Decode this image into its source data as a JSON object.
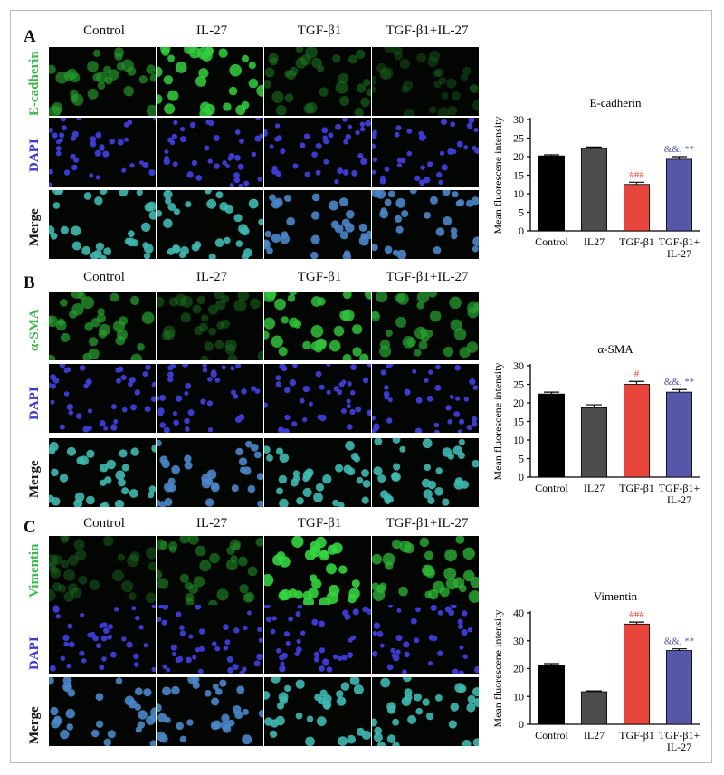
{
  "columns": [
    "Control",
    "IL-27",
    "TGF-β1",
    "TGF-β1+IL-27"
  ],
  "colors": {
    "marker_green": "#3cb84a",
    "dapi_blue": "#3b3bd0",
    "bar_control": "#000000",
    "bar_il27": "#555555",
    "bar_tgf": "#e8453c",
    "bar_combo": "#5558a8"
  },
  "panels": [
    {
      "letter": "A",
      "marker": "E-cadherin",
      "rows": [
        "E-cadherin",
        "DAPI",
        "Merge"
      ],
      "green_level": [
        0.55,
        0.85,
        0.35,
        0.2
      ]
    },
    {
      "letter": "B",
      "marker": "α-SMA",
      "rows": [
        "α-SMA",
        "DAPI",
        "Merge"
      ],
      "green_level": [
        0.6,
        0.3,
        0.8,
        0.6
      ]
    },
    {
      "letter": "C",
      "marker": "Vimentin",
      "rows": [
        "Vimentin",
        "DAPI",
        "Merge"
      ],
      "green_level": [
        0.25,
        0.45,
        0.9,
        0.7
      ]
    }
  ],
  "chart_data": [
    {
      "type": "bar",
      "title": "E-cadherin",
      "ylabel": "Mean fluorescene intensity",
      "categories": [
        "Control",
        "IL27",
        "TGF-β1",
        "TGF-β1+\nIL-27"
      ],
      "values": [
        20.2,
        22.2,
        12.5,
        19.3
      ],
      "errors": [
        0.3,
        0.4,
        0.6,
        0.7
      ],
      "annotations": [
        "",
        "",
        "###",
        "&&, **"
      ],
      "ylim": [
        0,
        30
      ],
      "yticks": [
        0,
        5,
        10,
        15,
        20,
        25,
        30
      ]
    },
    {
      "type": "bar",
      "title": "α-SMA",
      "ylabel": "Mean fluorescene intensity",
      "categories": [
        "Control",
        "IL27",
        "TGF-β1",
        "TGF-β1+\nIL-27"
      ],
      "values": [
        22.4,
        18.7,
        25.0,
        22.9
      ],
      "errors": [
        0.5,
        0.8,
        0.8,
        0.7
      ],
      "annotations": [
        "",
        "",
        "#",
        "&&, **"
      ],
      "ylim": [
        0,
        30
      ],
      "yticks": [
        0,
        5,
        10,
        15,
        20,
        25,
        30
      ]
    },
    {
      "type": "bar",
      "title": "Vimentin",
      "ylabel": "Mean fluorescene intensity",
      "categories": [
        "Control",
        "IL27",
        "TGF-β1",
        "TGF-β1+\nIL-27"
      ],
      "values": [
        21.0,
        11.7,
        36.0,
        26.5
      ],
      "errors": [
        0.8,
        0.3,
        0.7,
        0.6
      ],
      "annotations": [
        "",
        "",
        "###",
        "&&, **"
      ],
      "ylim": [
        0,
        40
      ],
      "yticks": [
        0,
        10,
        20,
        30,
        40
      ]
    }
  ]
}
